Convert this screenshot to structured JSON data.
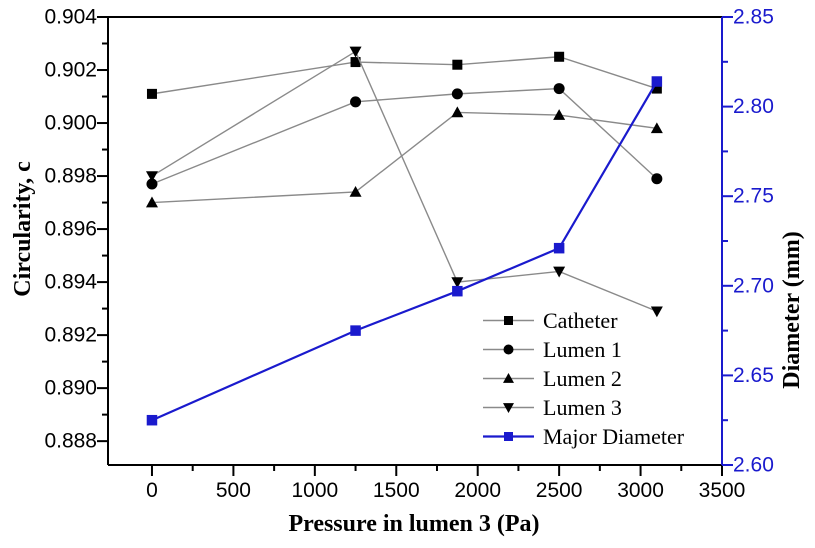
{
  "chart_data": {
    "type": "line",
    "title": "",
    "xlabel": "Pressure in lumen 3 (Pa)",
    "ylabel_left": "Circularity, c",
    "ylabel_right": "Diameter (mm)",
    "grid": false,
    "colors": {
      "axis_black": "#000000",
      "axis_blue": "#1a1acd",
      "series_line_gray": "#8a8a8a",
      "marker_black": "#000000",
      "marker_blue": "#1a1acd",
      "background": "#ffffff"
    },
    "x_axis": {
      "min": -270,
      "max": 3500,
      "major_tick_values": [
        0,
        500,
        1000,
        1500,
        2000,
        2500,
        3000,
        3500
      ],
      "major_tick_labels": [
        "0",
        "500",
        "1000",
        "1500",
        "2000",
        "2500",
        "3000",
        "3500"
      ],
      "minor_tick_values": [
        250,
        750,
        1250,
        1750,
        2250,
        2750,
        3250
      ]
    },
    "y_axis_left": {
      "min": 0.8871,
      "max": 0.904,
      "major_tick_values": [
        0.904,
        0.902,
        0.9,
        0.898,
        0.896,
        0.894,
        0.892,
        0.89,
        0.888
      ],
      "major_tick_labels": [
        "0.904",
        "0.902",
        "0.900",
        "0.898",
        "0.896",
        "0.894",
        "0.892",
        "0.890",
        "0.888"
      ],
      "minor_tick_values": [
        0.903,
        0.901,
        0.899,
        0.897,
        0.895,
        0.893,
        0.891,
        0.889
      ]
    },
    "y_axis_right": {
      "min": 2.6,
      "max": 2.85,
      "major_tick_values": [
        2.85,
        2.8,
        2.75,
        2.7,
        2.65,
        2.6
      ],
      "major_tick_labels": [
        "2.85",
        "2.80",
        "2.75",
        "2.70",
        "2.65",
        "2.60"
      ],
      "minor_tick_values": [
        2.825,
        2.775,
        2.725,
        2.675,
        2.625
      ]
    },
    "series": [
      {
        "name": "Catheter",
        "slug": "catheter",
        "axis": "left",
        "marker": "square",
        "marker_color": "#000000",
        "line_color": "#8a8a8a",
        "line_width": 1.4,
        "x": [
          0,
          1250,
          1875,
          2500,
          3100
        ],
        "y": [
          0.9011,
          0.9023,
          0.9022,
          0.9025,
          0.9013
        ]
      },
      {
        "name": "Lumen 1",
        "slug": "lumen-1",
        "axis": "left",
        "marker": "circle",
        "marker_color": "#000000",
        "line_color": "#8a8a8a",
        "line_width": 1.4,
        "x": [
          0,
          1250,
          1875,
          2500,
          3100
        ],
        "y": [
          0.8977,
          0.9008,
          0.9011,
          0.9013,
          0.8979
        ]
      },
      {
        "name": "Lumen 2",
        "slug": "lumen-2",
        "axis": "left",
        "marker": "triangle-up",
        "marker_color": "#000000",
        "line_color": "#8a8a8a",
        "line_width": 1.4,
        "x": [
          0,
          1250,
          1875,
          2500,
          3100
        ],
        "y": [
          0.897,
          0.8974,
          0.9004,
          0.9003,
          0.8998
        ]
      },
      {
        "name": "Lumen 3",
        "slug": "lumen-3",
        "axis": "left",
        "marker": "triangle-down",
        "marker_color": "#000000",
        "line_color": "#8a8a8a",
        "line_width": 1.4,
        "x": [
          0,
          1250,
          1875,
          2500,
          3100
        ],
        "y": [
          0.898,
          0.9027,
          0.894,
          0.8944,
          0.8929
        ]
      },
      {
        "name": "Major Diameter",
        "slug": "major-diameter",
        "axis": "right",
        "marker": "square",
        "marker_color": "#1a1acd",
        "line_color": "#1a1acd",
        "line_width": 2.2,
        "x": [
          0,
          1250,
          1875,
          2500,
          3100
        ],
        "y": [
          2.625,
          2.675,
          2.697,
          2.721,
          2.814
        ]
      }
    ],
    "legend": {
      "position": "inside-bottom-right",
      "items": [
        "Catheter",
        "Lumen 1",
        "Lumen 2",
        "Lumen 3",
        "Major Diameter"
      ]
    }
  }
}
